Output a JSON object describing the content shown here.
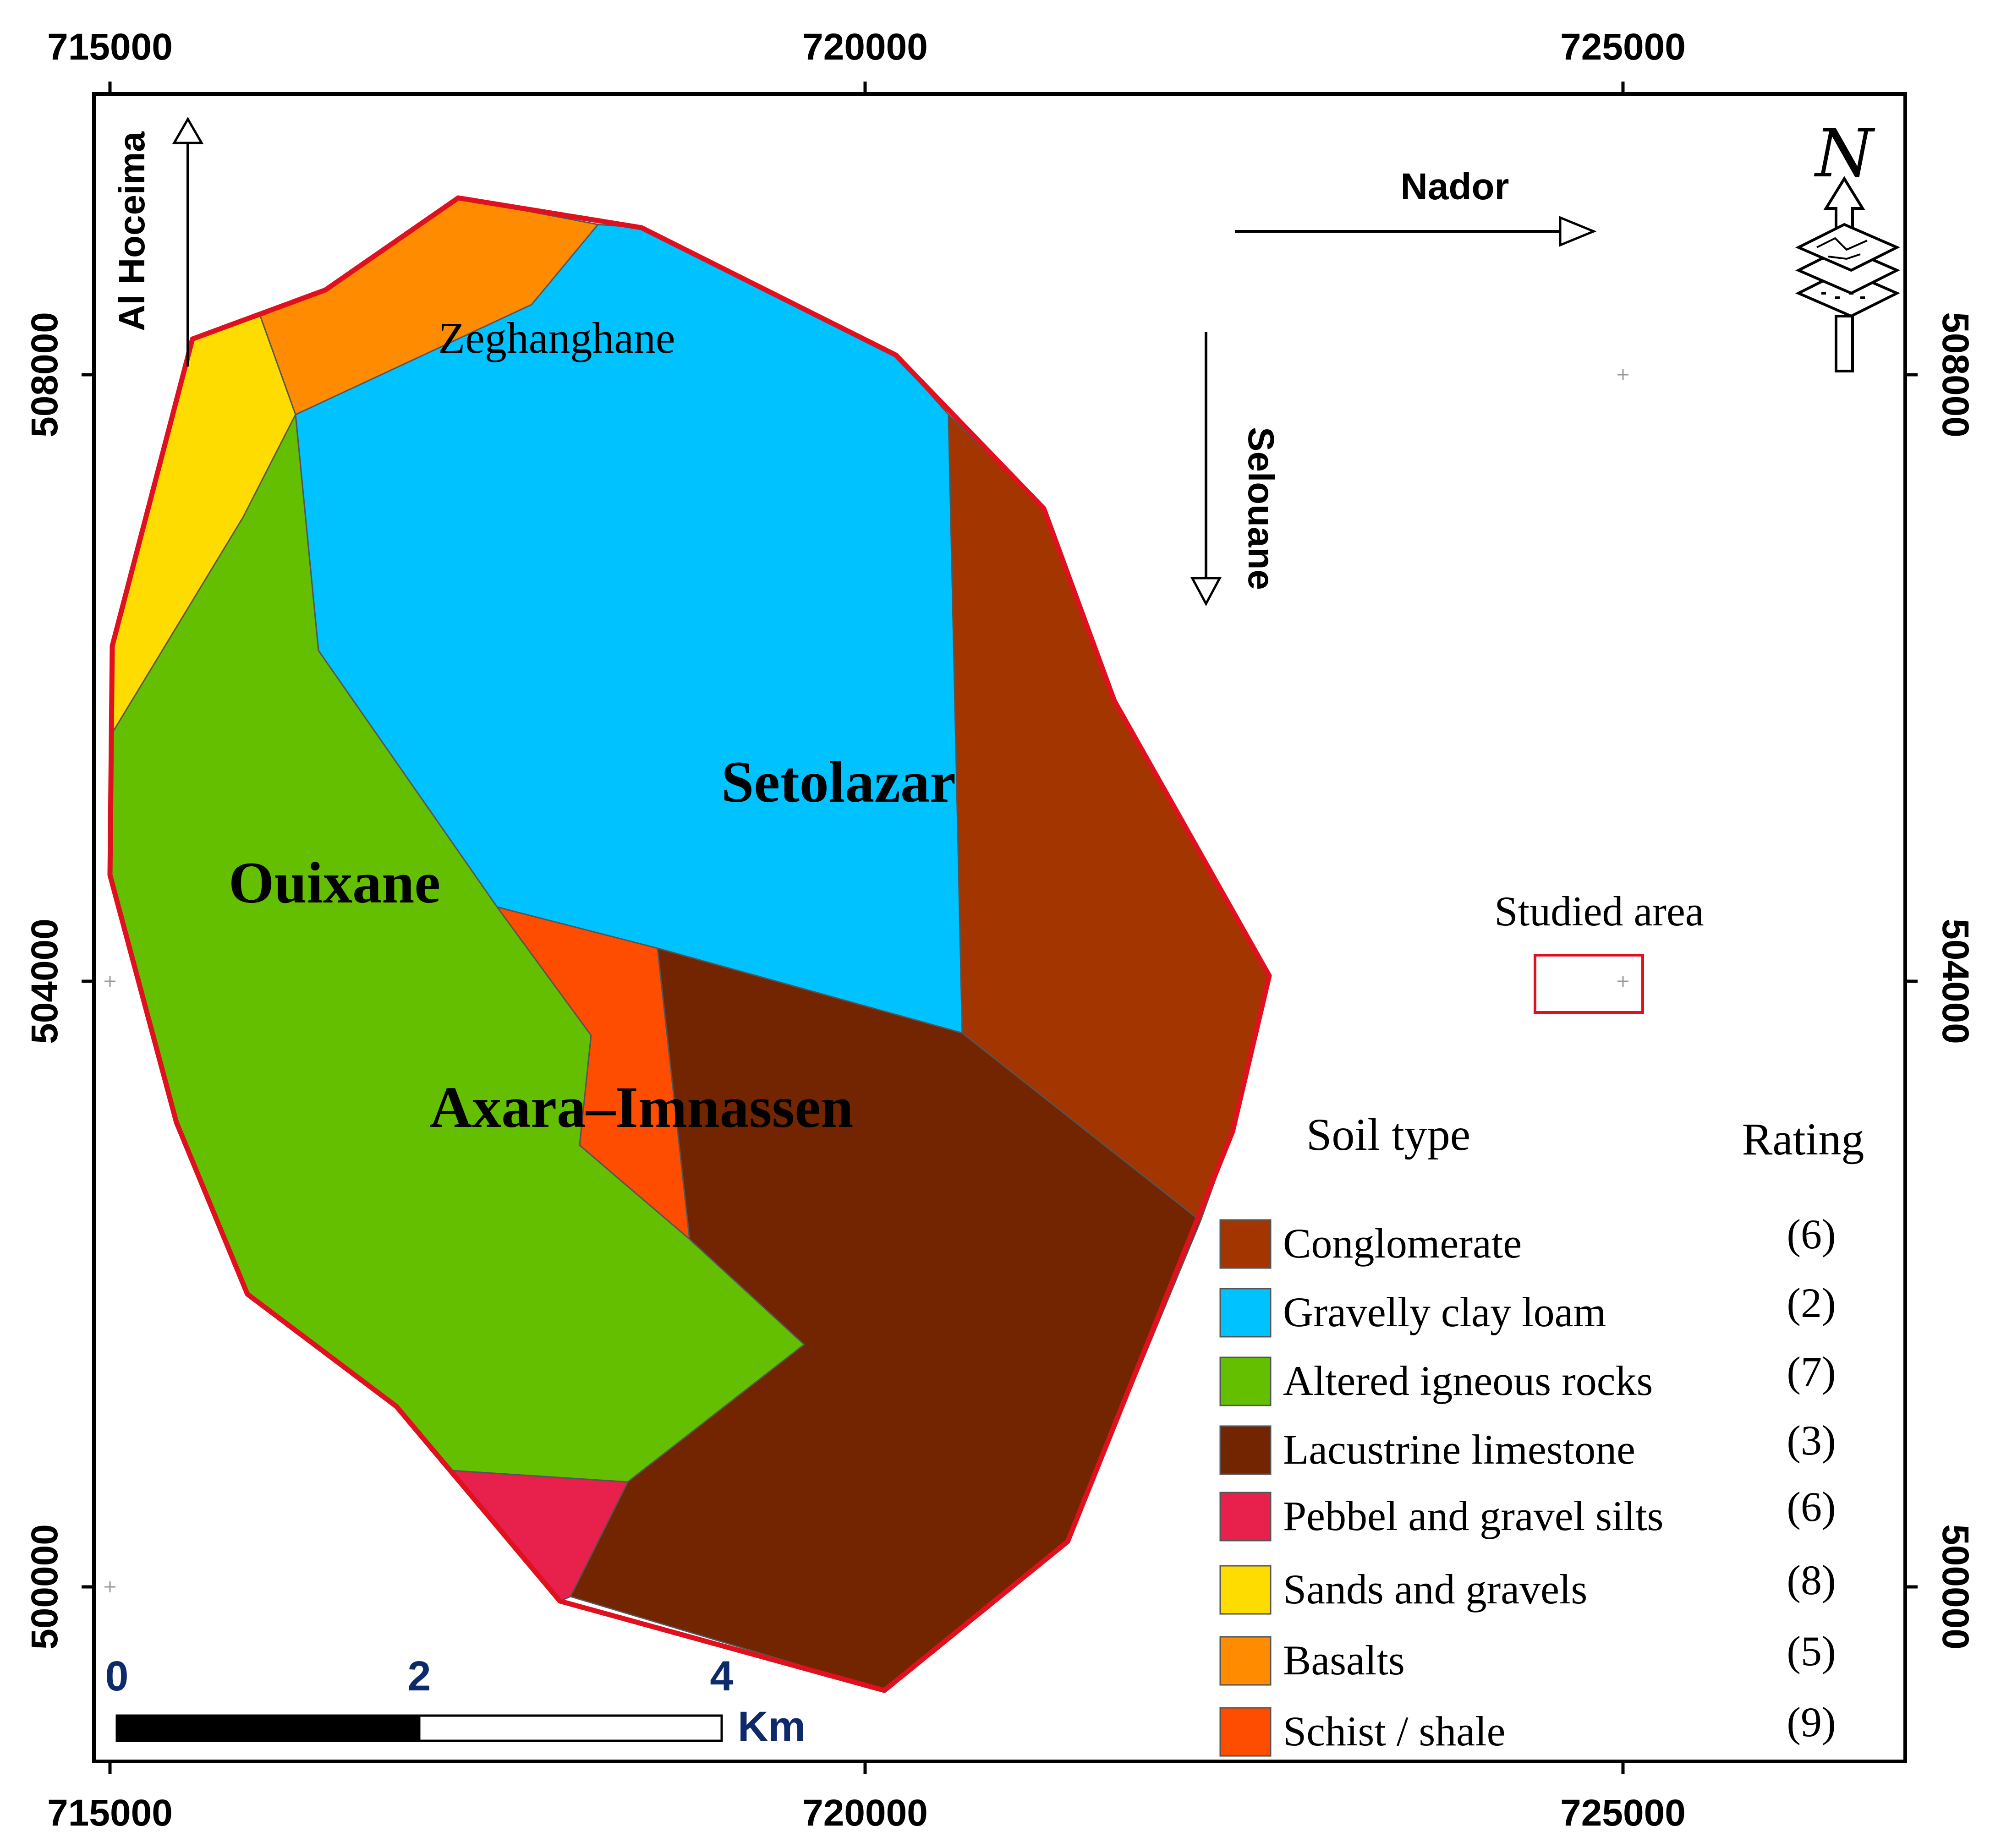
{
  "frame": {
    "top_ticks": [
      "715000",
      "720000",
      "725000"
    ],
    "bottom_ticks": [
      "715000",
      "720000",
      "725000"
    ],
    "left_ticks": [
      "508000",
      "504000",
      "500000"
    ],
    "right_ticks": [
      "508000",
      "504000",
      "500000"
    ]
  },
  "directions": {
    "al_hoceima": "Al Hoceima",
    "nador": "Nador",
    "selouane": "Selouane"
  },
  "places": {
    "zeghanghane": "Zeghanghane",
    "setolazar": "Setolazar",
    "ouixane": "Ouixane",
    "axara": "Axara–Imnassen"
  },
  "studied_area": {
    "label": "Studied area",
    "color": "#e0101e"
  },
  "legend": {
    "title": "Soil type",
    "rating_title": "Rating",
    "items": [
      {
        "label": "Conglomerate",
        "rating": "(6)",
        "color": "#a33600"
      },
      {
        "label": "Gravelly clay loam",
        "rating": "(2)",
        "color": "#00c2ff"
      },
      {
        "label": "Altered igneous rocks",
        "rating": "(7)",
        "color": "#63bf00"
      },
      {
        "label": "Lacustrine limestone",
        "rating": "(3)",
        "color": "#722500"
      },
      {
        "label": "Pebbel and gravel silts",
        "rating": "(6)",
        "color": "#e8204c"
      },
      {
        "label": "Sands and gravels",
        "rating": "(8)",
        "color": "#ffdc00"
      },
      {
        "label": "Basalts",
        "rating": "(5)",
        "color": "#ff8c00"
      },
      {
        "label": "Schist / shale",
        "rating": "(9)",
        "color": "#ff4d00"
      }
    ]
  },
  "scale_bar": {
    "ticks": [
      "0",
      "2",
      "4"
    ],
    "unit": "Km",
    "color": "#0d2a6b"
  },
  "north_arrow": {
    "label": "N"
  }
}
